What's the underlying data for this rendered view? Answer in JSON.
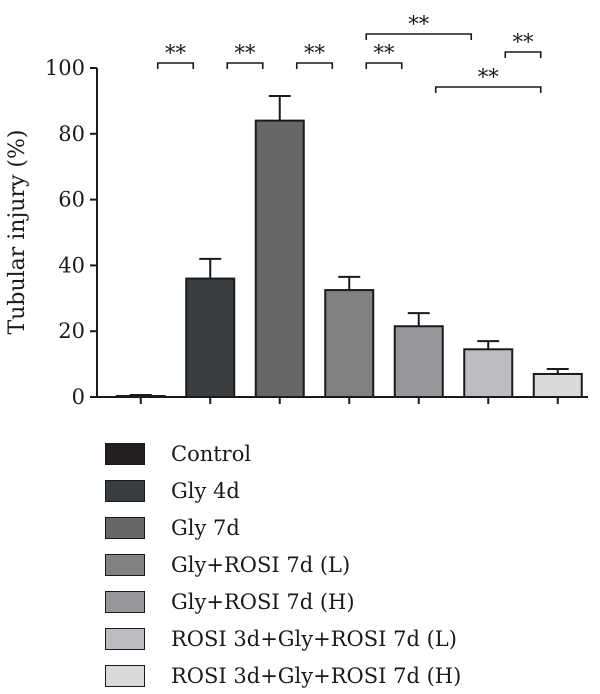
{
  "chart_data": {
    "type": "bar",
    "ylabel": "Tubular injury (%)",
    "ylim": [
      0,
      100
    ],
    "yticks": [
      0,
      20,
      40,
      60,
      80,
      100
    ],
    "series": [
      {
        "name": "Control",
        "value": 0.3,
        "error": 0.3,
        "color": "#231f20"
      },
      {
        "name": "Gly 4d",
        "value": 36,
        "error": 6,
        "color": "#3a3d40"
      },
      {
        "name": "Gly 7d",
        "value": 84,
        "error": 7.5,
        "color": "#666769"
      },
      {
        "name": "Gly+ROSI 7d (L)",
        "value": 32.5,
        "error": 4,
        "color": "#808183"
      },
      {
        "name": "Gly+ROSI 7d (H)",
        "value": 21.5,
        "error": 4,
        "color": "#96979a"
      },
      {
        "name": "ROSI 3d+Gly+ROSI 7d (L)",
        "value": 14.5,
        "error": 2.5,
        "color": "#bcbdc0"
      },
      {
        "name": "ROSI 3d+Gly+ROSI 7d (H)",
        "value": 7,
        "error": 1.5,
        "color": "#d9dadc"
      }
    ],
    "significance": [
      {
        "from": 0,
        "to": 1,
        "label": "**"
      },
      {
        "from": 1,
        "to": 2,
        "label": "**"
      },
      {
        "from": 2,
        "to": 3,
        "label": "**"
      },
      {
        "from": 3,
        "to": 4,
        "label": "**"
      },
      {
        "from": 3,
        "to": 5,
        "label": "**"
      },
      {
        "from": 4,
        "to": 6,
        "label": "**"
      },
      {
        "from": 5,
        "to": 6,
        "label": "**"
      }
    ]
  }
}
